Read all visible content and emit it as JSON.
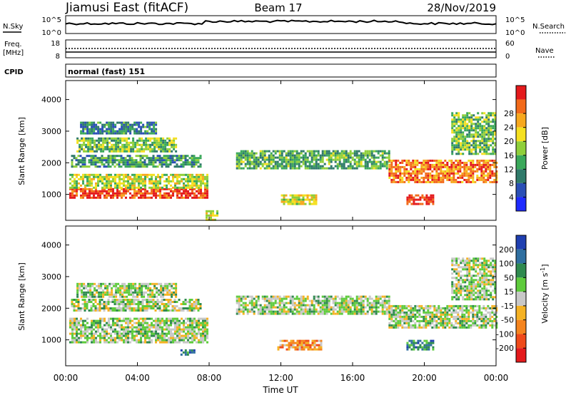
{
  "header": {
    "title": "Jiamusi East (fitACF)",
    "beam": "Beam 17",
    "date": "28/Nov/2019"
  },
  "noise_panel": {
    "left_label": "N.Sky",
    "left_top_tick": "10^5",
    "left_bottom_tick": "10^0",
    "right_label": "N.Search",
    "right_top_tick": "10^5",
    "right_bottom_tick": "10^0"
  },
  "freq_panel": {
    "label_line1": "Freq.",
    "label_line2": "[MHz]",
    "left_ticks": [
      "18",
      "8"
    ],
    "right_ticks": [
      "60",
      "0"
    ],
    "right_label": "Nave"
  },
  "cpid_panel": {
    "label": "CPID",
    "value": "normal (fast) 151"
  },
  "x_axis": {
    "title": "Time UT",
    "ticks": [
      "00:00",
      "04:00",
      "08:00",
      "12:00",
      "16:00",
      "20:00",
      "00:00"
    ]
  },
  "chart_data": [
    {
      "type": "heatmap",
      "name": "power",
      "ylabel": "Slant Range [km]",
      "yticks": [
        1000,
        2000,
        3000,
        4000
      ],
      "ylim": [
        180,
        4600
      ],
      "xlim_hours": [
        0,
        24
      ],
      "colorbar": {
        "title": "Power [dB]",
        "ticks": [
          "4",
          "8",
          "12",
          "16",
          "20",
          "24",
          "28"
        ],
        "colors": [
          "#1f2bff",
          "#2a4fb6",
          "#2f7a6a",
          "#3aa85a",
          "#8fcf3a",
          "#f5e020",
          "#f7a81e",
          "#f26a1a",
          "#e41a1c"
        ]
      },
      "regions": [
        {
          "t0": 0.2,
          "t1": 7.9,
          "r0": 900,
          "r1": 1200,
          "level": 0.9
        },
        {
          "t0": 0.2,
          "t1": 7.9,
          "r0": 1200,
          "r1": 1650,
          "level": 0.55
        },
        {
          "t0": 0.3,
          "t1": 7.5,
          "r0": 1900,
          "r1": 2250,
          "level": 0.35
        },
        {
          "t0": 0.6,
          "t1": 6.2,
          "r0": 2350,
          "r1": 2800,
          "level": 0.45
        },
        {
          "t0": 0.8,
          "t1": 5.0,
          "r0": 2900,
          "r1": 3300,
          "level": 0.3
        },
        {
          "t0": 7.8,
          "t1": 8.4,
          "r0": 200,
          "r1": 500,
          "level": 0.6
        },
        {
          "t0": 9.5,
          "t1": 18.0,
          "r0": 1800,
          "r1": 2400,
          "level": 0.4
        },
        {
          "t0": 12.0,
          "t1": 14.0,
          "r0": 700,
          "r1": 1000,
          "level": 0.6
        },
        {
          "t0": 18.0,
          "t1": 24.0,
          "r0": 1400,
          "r1": 2100,
          "level": 0.8
        },
        {
          "t0": 19.0,
          "t1": 20.5,
          "r0": 700,
          "r1": 1000,
          "level": 0.95
        },
        {
          "t0": 21.5,
          "t1": 24.0,
          "r0": 2300,
          "r1": 3600,
          "level": 0.45
        }
      ]
    },
    {
      "type": "heatmap",
      "name": "velocity",
      "ylabel": "Slant Range [km]",
      "yticks": [
        1000,
        2000,
        3000,
        4000
      ],
      "ylim": [
        180,
        4600
      ],
      "xlim_hours": [
        0,
        24
      ],
      "colorbar": {
        "title": "Velocity [m s^-1]",
        "ticks": [
          "200",
          "100",
          "50",
          "15",
          "-15",
          "-50",
          "-100",
          "-200"
        ],
        "colors": [
          "#1f3fb0",
          "#2f6fa0",
          "#2f8a4f",
          "#5ecb3c",
          "#c8c8c8",
          "#f5b224",
          "#f5841e",
          "#ef4a1a",
          "#e41a1c"
        ]
      },
      "regions": [
        {
          "t0": 0.2,
          "t1": 7.9,
          "r0": 900,
          "r1": 1700,
          "level": 0.45
        },
        {
          "t0": 0.3,
          "t1": 7.5,
          "r0": 1900,
          "r1": 2300,
          "level": 0.45
        },
        {
          "t0": 0.6,
          "t1": 6.2,
          "r0": 2350,
          "r1": 2800,
          "level": 0.45
        },
        {
          "t0": 6.4,
          "t1": 7.2,
          "r0": 500,
          "r1": 700,
          "level": 0.2
        },
        {
          "t0": 9.5,
          "t1": 18.0,
          "r0": 1800,
          "r1": 2400,
          "level": 0.45
        },
        {
          "t0": 11.8,
          "t1": 14.2,
          "r0": 700,
          "r1": 1000,
          "level": 0.7
        },
        {
          "t0": 18.0,
          "t1": 24.0,
          "r0": 1400,
          "r1": 2100,
          "level": 0.45
        },
        {
          "t0": 19.0,
          "t1": 20.5,
          "r0": 700,
          "r1": 1000,
          "level": 0.25
        },
        {
          "t0": 21.5,
          "t1": 24.0,
          "r0": 2300,
          "r1": 3600,
          "level": 0.45
        }
      ]
    }
  ]
}
